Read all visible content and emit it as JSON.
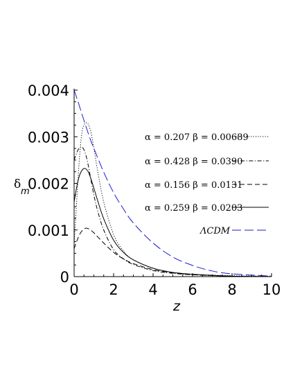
{
  "chart_data": {
    "type": "line",
    "xlabel": "z",
    "ylabel": "δ",
    "ylabel_subscript": "m",
    "xlim": [
      0,
      10
    ],
    "ylim": [
      0,
      0.004
    ],
    "xticks": [
      "0",
      "2",
      "4",
      "6",
      "8",
      "10"
    ],
    "xtick_values": [
      0,
      2,
      4,
      6,
      8,
      10
    ],
    "yticks": [
      "0",
      "0.001",
      "0.002",
      "0.003",
      "0.004"
    ],
    "ytick_values": [
      0,
      0.001,
      0.002,
      0.003,
      0.004
    ],
    "grid": false,
    "legend_position": "right",
    "series": [
      {
        "name": "α = 0.207   β = 0.00689",
        "style": "dotted",
        "color": "#000000",
        "x": [
          0,
          0.1,
          0.2,
          0.3,
          0.4,
          0.5,
          0.6,
          0.7,
          0.8,
          0.9,
          1.0,
          1.2,
          1.5,
          2.0,
          2.5,
          3.0,
          4.0,
          5.0,
          6.0,
          8.0,
          10.0
        ],
        "y": [
          0.0007,
          0.0014,
          0.0021,
          0.0027,
          0.0031,
          0.00325,
          0.0033,
          0.00328,
          0.00318,
          0.003,
          0.00276,
          0.00225,
          0.0016,
          0.0009,
          0.00055,
          0.00036,
          0.00018,
          9e-05,
          5e-05,
          2e-05,
          1e-05
        ]
      },
      {
        "name": "α = 0.428   β = 0.0390",
        "style": "dashdot",
        "color": "#000000",
        "x": [
          0,
          0.1,
          0.2,
          0.3,
          0.4,
          0.5,
          0.6,
          0.7,
          0.8,
          1.0,
          1.2,
          1.5,
          2.0,
          2.5,
          3.0,
          4.0,
          5.0,
          6.0,
          8.0,
          10.0
        ],
        "y": [
          0.0025,
          0.00262,
          0.00272,
          0.00277,
          0.00278,
          0.00272,
          0.0026,
          0.00242,
          0.0022,
          0.00175,
          0.0014,
          0.001,
          0.00058,
          0.00038,
          0.00026,
          0.00013,
          7e-05,
          4e-05,
          1e-05,
          0.0
        ]
      },
      {
        "name": "α = 0.156   β = 0.0131",
        "style": "dashed",
        "color": "#000000",
        "x": [
          0,
          0.1,
          0.2,
          0.3,
          0.4,
          0.5,
          0.6,
          0.7,
          0.8,
          1.0,
          1.2,
          1.5,
          2.0,
          2.5,
          3.0,
          4.0,
          5.0,
          6.0,
          8.0,
          10.0
        ],
        "y": [
          0.0006,
          0.00072,
          0.00083,
          0.00092,
          0.00098,
          0.00102,
          0.00104,
          0.00103,
          0.00101,
          0.00094,
          0.00085,
          0.00072,
          0.00052,
          0.00038,
          0.00028,
          0.00015,
          8e-05,
          4e-05,
          1e-05,
          0.0
        ]
      },
      {
        "name": "α = 0.259   β = 0.0203",
        "style": "solid",
        "color": "#000000",
        "x": [
          0,
          0.1,
          0.2,
          0.3,
          0.4,
          0.5,
          0.6,
          0.7,
          0.8,
          1.0,
          1.2,
          1.5,
          2.0,
          2.5,
          3.0,
          4.0,
          5.0,
          6.0,
          8.0,
          10.0
        ],
        "y": [
          0.0016,
          0.00185,
          0.00206,
          0.0022,
          0.00228,
          0.00232,
          0.00231,
          0.00226,
          0.00216,
          0.0019,
          0.00162,
          0.00124,
          0.00078,
          0.00052,
          0.00036,
          0.00018,
          9e-05,
          5e-05,
          1e-05,
          0.0
        ]
      },
      {
        "name": "ΛCDM",
        "style": "longdash",
        "color": "#1a1acc",
        "x": [
          0,
          0.2,
          0.4,
          0.6,
          0.8,
          1.0,
          1.5,
          2.0,
          2.5,
          3.0,
          4.0,
          5.0,
          6.0,
          7.0,
          8.0,
          10.0
        ],
        "y": [
          0.004,
          0.00375,
          0.00348,
          0.00322,
          0.00297,
          0.00275,
          0.00224,
          0.0018,
          0.00145,
          0.00115,
          0.00072,
          0.00042,
          0.00024,
          0.00012,
          6e-05,
          1e-05
        ]
      }
    ]
  }
}
